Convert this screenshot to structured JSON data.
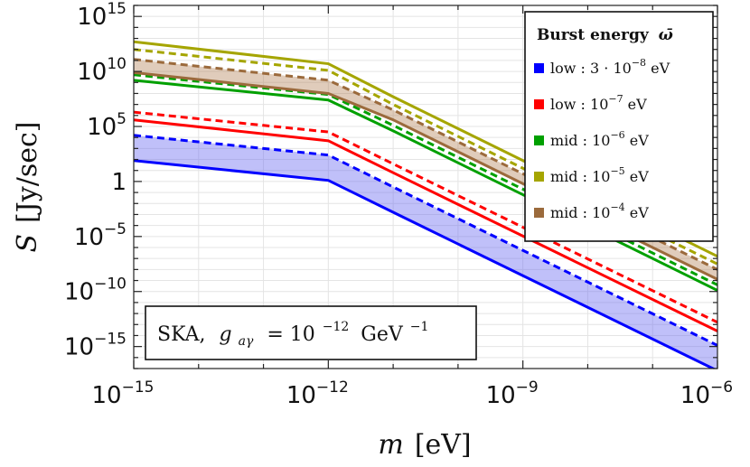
{
  "chart_data": {
    "type": "line",
    "title": "",
    "xscale": "log",
    "yscale": "log",
    "xlim": [
      1e-15,
      1e-06
    ],
    "ylim": [
      1e-17,
      1e+16
    ],
    "xlabel": {
      "var": "m",
      "unit": "[eV]"
    },
    "ylabel": {
      "var": "S",
      "unit": "[Jy/sec]"
    },
    "x_ticks": [
      {
        "base": "10",
        "exp": "−15"
      },
      {
        "base": "10",
        "exp": "−12"
      },
      {
        "base": "10",
        "exp": "−9"
      },
      {
        "base": "10",
        "exp": "−6"
      }
    ],
    "y_ticks": [
      {
        "value": 1000000000000000.0,
        "base": "10",
        "exp": "15"
      },
      {
        "value": 10000000000.0,
        "base": "10",
        "exp": "10"
      },
      {
        "value": 100000.0,
        "base": "10",
        "exp": "5"
      },
      {
        "value": 1,
        "base": "1",
        "exp": ""
      },
      {
        "value": 1e-05,
        "base": "10",
        "exp": "−5"
      },
      {
        "value": 1e-10,
        "base": "10",
        "exp": "−10"
      },
      {
        "value": 1e-15,
        "base": "10",
        "exp": "−15"
      }
    ],
    "grid": true,
    "legend": {
      "title_text": "Burst energy",
      "title_symbol": "ω̄",
      "placement": "top-right",
      "entries": [
        {
          "label": "low : 3 · 10",
          "sup": "−8",
          "unit": " eV",
          "color": "#0000ff"
        },
        {
          "label": "low : 10",
          "sup": "−7",
          "unit": " eV",
          "color": "#ff0000"
        },
        {
          "label": "mid : 10",
          "sup": "−6",
          "unit": " eV",
          "color": "#00a000"
        },
        {
          "label": "mid : 10",
          "sup": "−5",
          "unit": " eV",
          "color": "#a5a500"
        },
        {
          "label": "mid : 10",
          "sup": "−4",
          "unit": " eV",
          "color": "#9b6a3c"
        }
      ]
    },
    "annotation": {
      "prefix": "SKA,",
      "g": "g",
      "g_sub": "aγ",
      "eq": "= 10",
      "eq_sup": "−12",
      "unit": "GeV",
      "unit_sup": "−1"
    },
    "series": [
      {
        "name": "low 3e-8 eV (solid)",
        "color": "#0000ff",
        "style": "solid",
        "log10_x": [
          -15,
          -12,
          -11,
          -6
        ],
        "log10_y": [
          1.9,
          0.1,
          -2.8,
          -17.2
        ]
      },
      {
        "name": "low 3e-8 eV (dashed)",
        "color": "#0000ff",
        "style": "dashed",
        "log10_x": [
          -15,
          -12,
          -11,
          -6
        ],
        "log10_y": [
          4.2,
          2.4,
          -0.5,
          -14.9
        ]
      },
      {
        "name": "low 1e-7 eV (solid)",
        "color": "#ff0000",
        "style": "solid",
        "log10_x": [
          -15,
          -12,
          -11,
          -6
        ],
        "log10_y": [
          5.6,
          3.7,
          0.8,
          -13.6
        ]
      },
      {
        "name": "low 1e-7 eV (dashed)",
        "color": "#ff0000",
        "style": "dashed",
        "log10_x": [
          -15,
          -12,
          -11,
          -6
        ],
        "log10_y": [
          6.3,
          4.5,
          1.6,
          -12.8
        ]
      },
      {
        "name": "mid 1e-6 eV (solid)",
        "color": "#00a000",
        "style": "solid",
        "log10_x": [
          -15,
          -12,
          -11,
          -6
        ],
        "log10_y": [
          9.2,
          7.4,
          4.6,
          -9.9
        ]
      },
      {
        "name": "mid 1e-6 eV (dashed)",
        "color": "#00a000",
        "style": "dashed",
        "log10_x": [
          -15,
          -12,
          -11,
          -6
        ],
        "log10_y": [
          9.7,
          7.9,
          5.1,
          -9.4
        ]
      },
      {
        "name": "mid 1e-5 eV (solid)",
        "color": "#a5a500",
        "style": "solid",
        "log10_x": [
          -15,
          -12,
          -11,
          -6
        ],
        "log10_y": [
          12.7,
          10.7,
          7.7,
          -6.8
        ]
      },
      {
        "name": "mid 1e-5 eV (dashed)",
        "color": "#a5a500",
        "style": "dashed",
        "log10_x": [
          -15,
          -12,
          -11,
          -6
        ],
        "log10_y": [
          12.0,
          10.1,
          7.0,
          -7.5
        ]
      },
      {
        "name": "mid 1e-4 eV (solid)",
        "color": "#9b6a3c",
        "style": "solid",
        "log10_x": [
          -15,
          -12,
          -11,
          -6
        ],
        "log10_y": [
          9.9,
          8.0,
          5.6,
          -8.9
        ]
      },
      {
        "name": "mid 1e-4 eV (dashed)",
        "color": "#9b6a3c",
        "style": "dashed",
        "log10_x": [
          -15,
          -12,
          -11,
          -6
        ],
        "log10_y": [
          11.1,
          9.2,
          6.5,
          -8.0
        ]
      }
    ],
    "bands": [
      {
        "name": "low 3e-8 eV band",
        "color": "#6a6af0",
        "between": [
          0,
          1
        ]
      },
      {
        "name": "mid 1e-4 eV band",
        "color": "#b4865c",
        "between": [
          8,
          9
        ]
      }
    ]
  }
}
